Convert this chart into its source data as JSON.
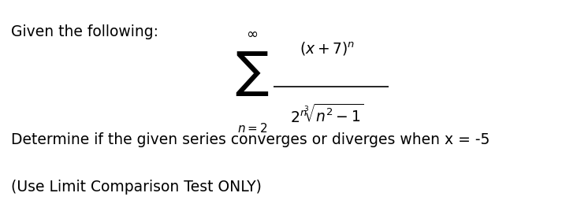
{
  "background_color": "#ffffff",
  "text_given": "Given the following:",
  "text_determine": "Determine if the given series converges or diverges when x = -5",
  "text_use": "(Use Limit Comparison Test ONLY)",
  "formula_numerator": "$(x + 7)^n$",
  "formula_denominator": "$2^n\\sqrt[3]{n^2 - 1}$",
  "sum_symbol": "$\\sum$",
  "sum_top": "$\\infty$",
  "sum_bottom": "$n=2$",
  "font_size_text": 13.5,
  "font_size_formula": 13.5,
  "font_size_sum": 30
}
